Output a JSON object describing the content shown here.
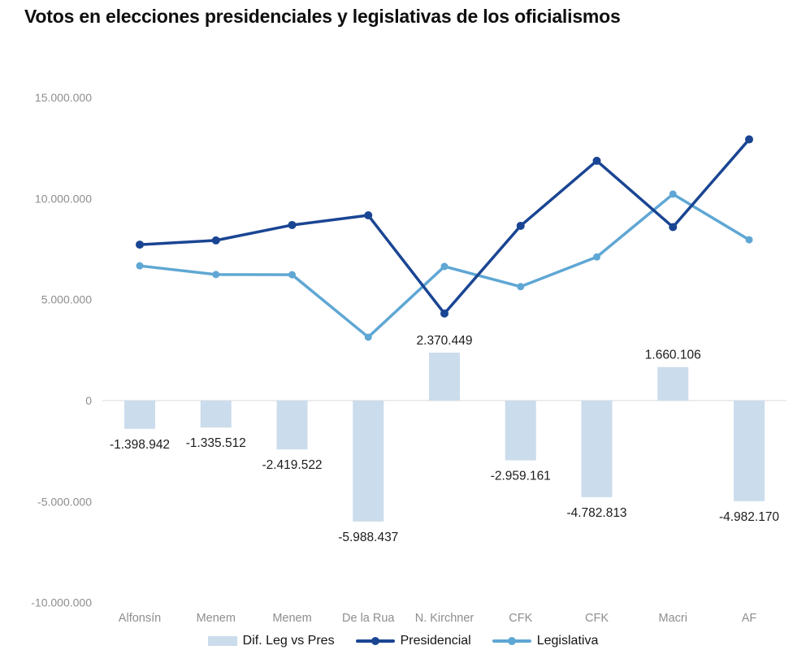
{
  "title": "Votos en elecciones presidenciales y legislativas de los oficialismos",
  "colors": {
    "background": "#ffffff",
    "bar": "#cbdcec",
    "presidencial": "#1a4593",
    "legislativa": "#5fa7d4",
    "grid": "#e1e1e1",
    "axis_text": "#8e8e8e",
    "bar_label_text": "#1c1c1c",
    "title_text": "#0f0f0f",
    "legend_text": "#141414"
  },
  "legend": {
    "position": "bottom-center",
    "items": [
      {
        "label": "Dif. Leg vs Pres",
        "series": "diff",
        "marker": "bar-swatch"
      },
      {
        "label": "Presidencial",
        "series": "presidencial",
        "marker": "line-dot-dark-blue"
      },
      {
        "label": "Legislativa",
        "series": "legislativa",
        "marker": "line-dot-light-blue"
      }
    ]
  },
  "chart_data": {
    "type": "bar",
    "subtype": "combo bar + two lines",
    "title": "Votos en elecciones presidenciales y legislativas de los oficialismos",
    "xlabel": "",
    "ylabel": "",
    "grid": "zero-line-only",
    "legend_position": "bottom-center",
    "categories": [
      "Alfonsín",
      "Menem",
      "Menem",
      "De la Rua",
      "N. Kirchner",
      "CFK",
      "CFK",
      "Macri",
      "AF"
    ],
    "y_axis": {
      "range": [
        -10000000,
        15000000
      ],
      "ticks": [
        {
          "value": 15000000,
          "label": "15.000.000"
        },
        {
          "value": 10000000,
          "label": "10.000.000"
        },
        {
          "value": 5000000,
          "label": "5.000.000"
        },
        {
          "value": 0,
          "label": "0"
        },
        {
          "value": -5000000,
          "label": "-5.000.000"
        },
        {
          "value": -10000000,
          "label": "-10.000.000"
        }
      ]
    },
    "series": [
      {
        "name": "Dif. Leg vs Pres",
        "type": "bar",
        "values": [
          -1398942,
          -1335512,
          -2419522,
          -5988437,
          2370449,
          -2959161,
          -4782813,
          1660106,
          -4982170
        ],
        "labels": [
          "-1.398.942",
          "-1.335.512",
          "-2.419.522",
          "-5.988.437",
          "2.370.449",
          "-2.959.161",
          "-4.782.813",
          "1.660.106",
          "-4.982.170"
        ]
      },
      {
        "name": "Presidencial",
        "type": "line",
        "values": [
          7720000,
          7930000,
          8690000,
          9170000,
          4310000,
          8650000,
          11870000,
          8590000,
          12930000
        ]
      },
      {
        "name": "Legislativa",
        "type": "line",
        "values": [
          6670000,
          6240000,
          6230000,
          3140000,
          6640000,
          5640000,
          7110000,
          10220000,
          7960000
        ]
      }
    ]
  }
}
